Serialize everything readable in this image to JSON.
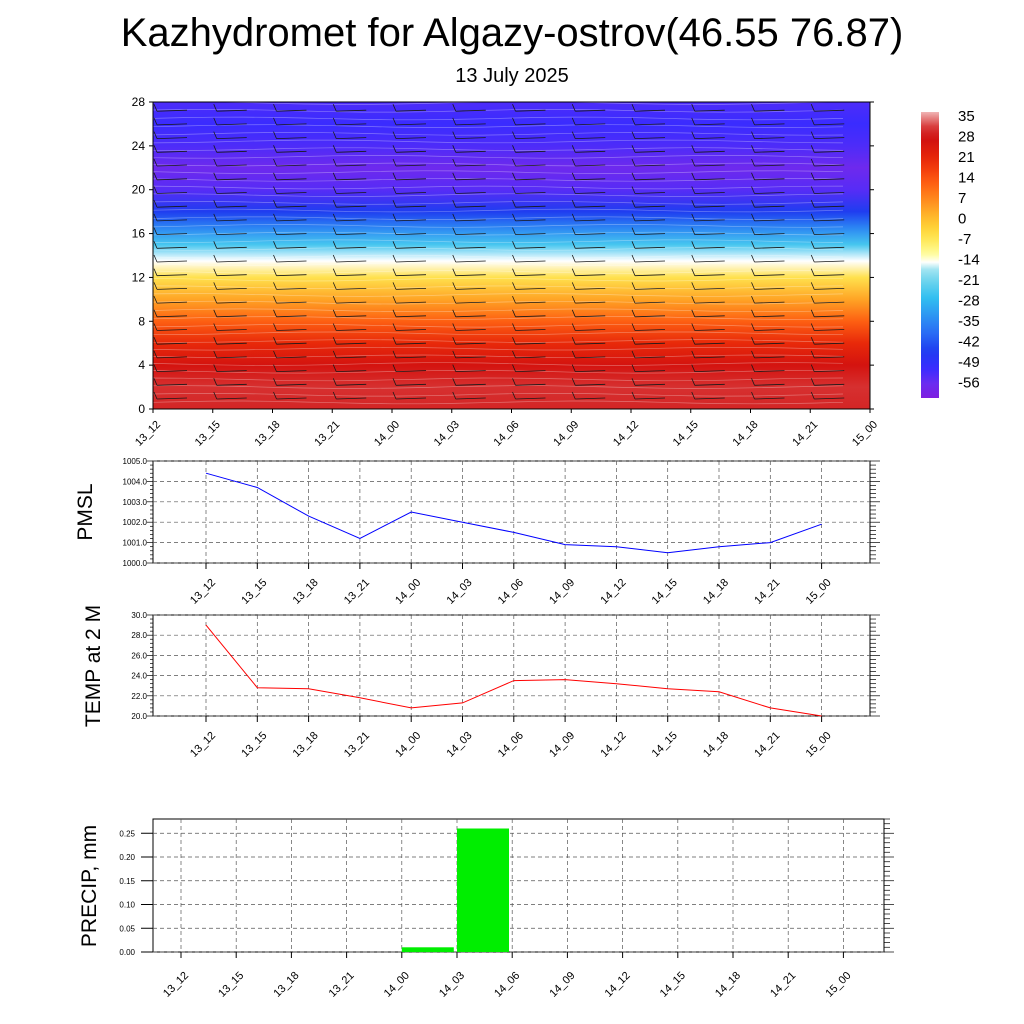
{
  "title": "Kazhydromet for Algazy-ostrov(46.55 76.87)",
  "subtitle": "13 July 2025",
  "times": [
    "13_12",
    "13_15",
    "13_18",
    "13_21",
    "14_00",
    "14_03",
    "14_06",
    "14_09",
    "14_12",
    "14_15",
    "14_18",
    "14_21",
    "15_00"
  ],
  "chart_data": [
    {
      "type": "heatmap",
      "title": "",
      "x": [
        "13_12",
        "13_15",
        "13_18",
        "13_21",
        "14_00",
        "14_03",
        "14_06",
        "14_09",
        "14_12",
        "14_15",
        "14_18",
        "14_21",
        "15_00"
      ],
      "ylim": [
        0,
        28
      ],
      "yticks": [
        0,
        4,
        8,
        12,
        16,
        20,
        24,
        28
      ],
      "colorbar_labels": [
        "35",
        "28",
        "21",
        "14",
        "7",
        "0",
        "-7",
        "-14",
        "-21",
        "-28",
        "-35",
        "-42",
        "-49",
        "-56"
      ],
      "colorbar_range": [
        -60,
        37
      ],
      "temperature_profile": [
        {
          "y": 0,
          "value": 30
        },
        {
          "y": 2,
          "value": 31
        },
        {
          "y": 4,
          "value": 27
        },
        {
          "y": 6,
          "value": 21
        },
        {
          "y": 8,
          "value": 13
        },
        {
          "y": 10,
          "value": 4
        },
        {
          "y": 12,
          "value": -5
        },
        {
          "y": 13.5,
          "value": -14
        },
        {
          "y": 15,
          "value": -24
        },
        {
          "y": 16.5,
          "value": -34
        },
        {
          "y": 18,
          "value": -44
        },
        {
          "y": 20,
          "value": -53
        },
        {
          "y": 22,
          "value": -56
        },
        {
          "y": 24,
          "value": -52
        },
        {
          "y": 26,
          "value": -50
        },
        {
          "y": 28,
          "value": -52
        }
      ]
    },
    {
      "type": "line",
      "ylabel": "PMSL",
      "x": [
        "13_12",
        "13_15",
        "13_18",
        "13_21",
        "14_00",
        "14_03",
        "14_06",
        "14_09",
        "14_12",
        "14_15",
        "14_18",
        "14_21",
        "15_00"
      ],
      "series": [
        {
          "values": [
            1004.4,
            1003.7,
            1002.3,
            1001.2,
            1002.5,
            1002.0,
            1001.5,
            1000.9,
            1000.8,
            1000.5,
            1000.8,
            1001.0,
            1001.9
          ],
          "color": "#0000ff"
        }
      ],
      "ylim": [
        1000.0,
        1005.0
      ],
      "yticks": [
        "1000.0",
        "1001.0",
        "1002.0",
        "1003.0",
        "1004.0",
        "1005.0"
      ]
    },
    {
      "type": "line",
      "ylabel": "TEMP at 2 M",
      "x": [
        "13_12",
        "13_15",
        "13_18",
        "13_21",
        "14_00",
        "14_03",
        "14_06",
        "14_09",
        "14_12",
        "14_15",
        "14_18",
        "14_21",
        "15_00"
      ],
      "series": [
        {
          "values": [
            29.0,
            22.8,
            22.7,
            21.8,
            20.8,
            21.3,
            23.5,
            23.6,
            23.2,
            22.7,
            22.4,
            20.8,
            20.0
          ],
          "color": "#ff0000"
        }
      ],
      "ylim": [
        20.0,
        30.0
      ],
      "yticks": [
        "20.0",
        "22.0",
        "24.0",
        "26.0",
        "28.0",
        "30.0"
      ]
    },
    {
      "type": "bar",
      "ylabel": "PRECIP, mm",
      "categories": [
        "13_12",
        "13_15",
        "13_18",
        "13_21",
        "14_00",
        "14_03",
        "14_06",
        "14_09",
        "14_12",
        "14_15",
        "14_18",
        "14_21",
        "15_00"
      ],
      "values": [
        0,
        0,
        0,
        0,
        0.01,
        0.26,
        0,
        0,
        0,
        0,
        0,
        0,
        0
      ],
      "color": "#00ee00",
      "ylim": [
        0,
        0.28
      ],
      "yticks": [
        "0.00",
        "0.05",
        "0.10",
        "0.15",
        "0.20",
        "0.25"
      ]
    }
  ]
}
